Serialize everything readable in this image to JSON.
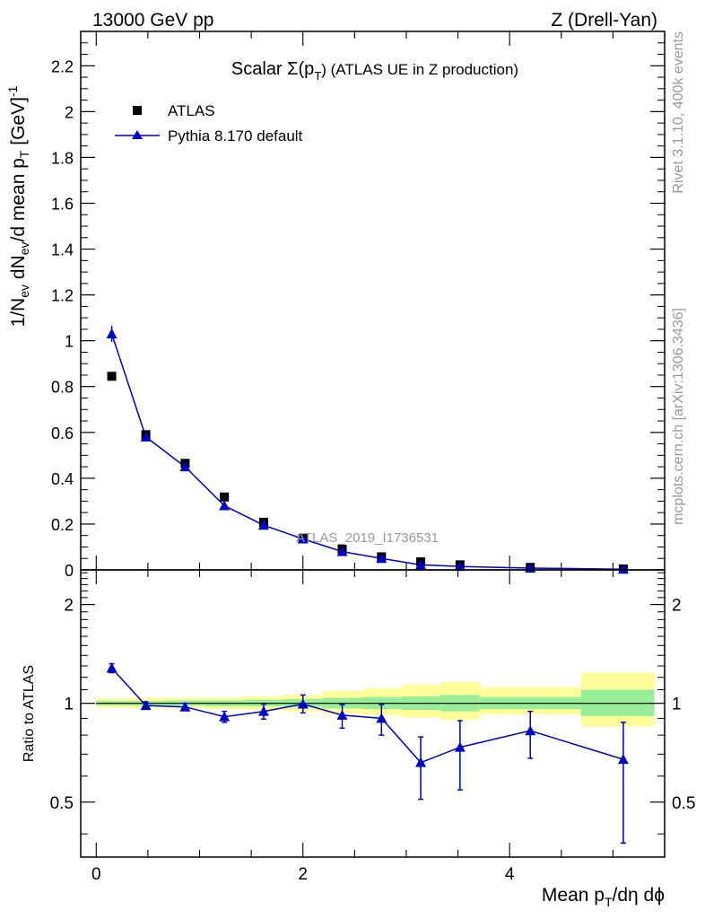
{
  "header": {
    "left": "13000 GeV pp",
    "right": "Z (Drell-Yan)"
  },
  "side_labels": {
    "rivet": "Rivet 3.1.10,  400k events",
    "mcplots": "mcplots.cern.ch [arXiv:1306.3436]"
  },
  "watermark": "ATLAS_2019_I1736531",
  "colors": {
    "data": "#000000",
    "mc": "#0000cc",
    "band_inner": "#99ee99",
    "band_outer": "#ffff99"
  },
  "chart_data": [
    {
      "type": "scatter",
      "title_main": "Scalar Σ(p",
      "title_sub": "T",
      "title_end": ") (ATLAS UE in Z production)",
      "ylabel": "1/N_ev dN_ev/d mean p_T [GeV]^-1",
      "ylabel_parts": {
        "a": "1/N",
        "a_sub": "ev",
        "b": " dN",
        "b_sub": "ev",
        "c": "/d mean p",
        "c_sub": "T",
        "d": " [GeV]",
        "d_sup": "-1"
      },
      "xlim": [
        -0.15,
        5.5
      ],
      "ylim": [
        0,
        2.35
      ],
      "y_ticks": [
        0,
        0.2,
        0.4,
        0.6,
        0.8,
        1,
        1.2,
        1.4,
        1.6,
        1.8,
        2,
        2.2
      ],
      "y_tick_labels": [
        "0",
        "0.2",
        "0.4",
        "0.6",
        "0.8",
        "1",
        "1.2",
        "1.4",
        "1.6",
        "1.8",
        "2",
        "2.2"
      ],
      "legend_placement": "top-left",
      "series": [
        {
          "name": "ATLAS",
          "marker": "square",
          "x": [
            0.15,
            0.48,
            0.86,
            1.24,
            1.62,
            2.0,
            2.38,
            2.76,
            3.14,
            3.52,
            4.2,
            5.1
          ],
          "y": [
            0.845,
            0.59,
            0.465,
            0.318,
            0.208,
            0.138,
            0.09,
            0.057,
            0.035,
            0.022,
            0.011,
            0.004
          ]
        },
        {
          "name": "Pythia 8.170 default",
          "marker": "triangle",
          "x": [
            0.15,
            0.48,
            0.86,
            1.24,
            1.62,
            2.0,
            2.38,
            2.76,
            3.14,
            3.52,
            4.2,
            5.1
          ],
          "y": [
            1.03,
            0.58,
            0.45,
            0.28,
            0.195,
            0.135,
            0.08,
            0.05,
            0.022,
            0.015,
            0.008,
            0.003
          ],
          "err": [
            0.035,
            0.015,
            0.015,
            0.012,
            0.01,
            0.008,
            0.006,
            0.004,
            0.004,
            0.003,
            0.002,
            0.001
          ]
        }
      ]
    },
    {
      "type": "scatter",
      "ylabel": "Ratio to ATLAS",
      "xlabel_parts": {
        "a": "Mean p",
        "a_sub": "T",
        "b": "/dη dϕ"
      },
      "xlim": [
        -0.15,
        5.5
      ],
      "ylim": [
        0.34,
        2.55
      ],
      "x_ticks": [
        0,
        2,
        4
      ],
      "x_tick_labels": [
        "0",
        "2",
        "4"
      ],
      "y_ticks": [
        0.5,
        1,
        2
      ],
      "y_tick_labels": [
        "0.5",
        "1",
        "2"
      ],
      "bands": {
        "edges": [
          0.0,
          0.3,
          0.67,
          1.05,
          1.43,
          1.81,
          2.19,
          2.57,
          2.95,
          3.33,
          3.71,
          4.69,
          5.4
        ],
        "inner_low": [
          0.985,
          0.985,
          0.985,
          0.98,
          0.98,
          0.975,
          0.965,
          0.96,
          0.955,
          0.945,
          0.96,
          0.915
        ],
        "inner_high": [
          1.015,
          1.015,
          1.02,
          1.02,
          1.025,
          1.03,
          1.04,
          1.045,
          1.05,
          1.06,
          1.045,
          1.1
        ],
        "outer_low": [
          0.97,
          0.965,
          0.965,
          0.96,
          0.955,
          0.945,
          0.93,
          0.92,
          0.905,
          0.89,
          0.925,
          0.85
        ],
        "outer_high": [
          1.035,
          1.04,
          1.04,
          1.04,
          1.05,
          1.06,
          1.09,
          1.11,
          1.14,
          1.16,
          1.12,
          1.24
        ]
      },
      "series": [
        {
          "name": "Pythia 8.170 default",
          "x": [
            0.15,
            0.48,
            0.86,
            1.24,
            1.62,
            2.0,
            2.38,
            2.76,
            3.14,
            3.52,
            4.2,
            5.1
          ],
          "y": [
            1.28,
            0.985,
            0.975,
            0.91,
            0.945,
            0.995,
            0.92,
            0.9,
            0.66,
            0.735,
            0.825,
            0.675
          ],
          "err_low": [
            0.04,
            0.025,
            0.025,
            0.035,
            0.05,
            0.06,
            0.08,
            0.1,
            0.15,
            0.19,
            0.145,
            0.3
          ],
          "err_high": [
            0.04,
            0.025,
            0.025,
            0.035,
            0.05,
            0.065,
            0.07,
            0.09,
            0.13,
            0.15,
            0.12,
            0.2
          ]
        }
      ]
    }
  ]
}
